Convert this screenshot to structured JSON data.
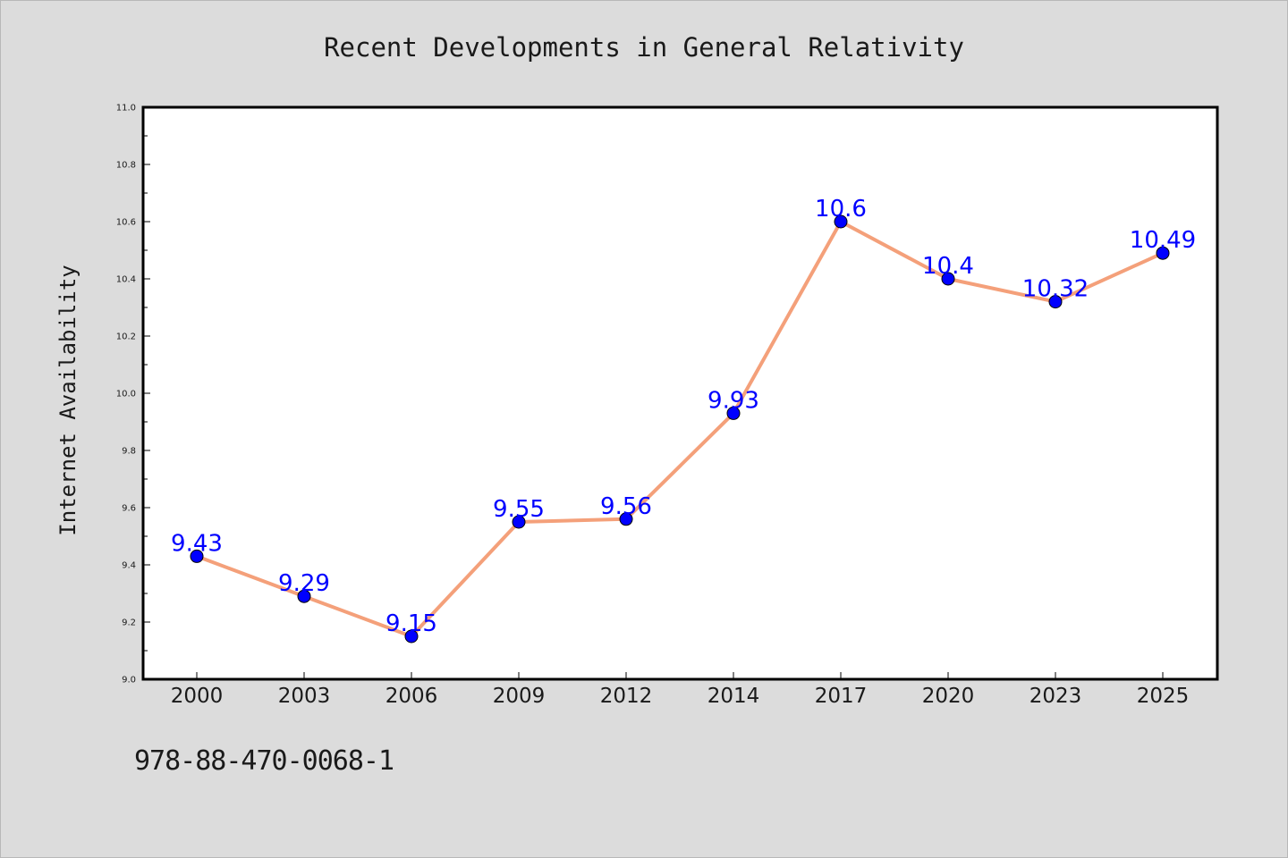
{
  "chart_data": {
    "type": "line",
    "title": "Recent Developments in General Relativity",
    "xlabel": "",
    "ylabel": "Internet Availability",
    "categories": [
      "2000",
      "2003",
      "2006",
      "2009",
      "2012",
      "2014",
      "2017",
      "2020",
      "2023",
      "2025"
    ],
    "series": [
      {
        "values": [
          9.43,
          9.29,
          9.15,
          9.55,
          9.56,
          9.93,
          10.6,
          10.4,
          10.32,
          10.49
        ],
        "labels": [
          "9.43",
          "9.29",
          "9.15",
          "9.55",
          "9.56",
          "9.93",
          "10.6",
          "10.4",
          "10.32",
          "10.49"
        ],
        "line_color": "#f4a07a",
        "marker_color": "#0000ff"
      }
    ],
    "ylim": [
      9.0,
      11.0
    ],
    "yticks": [
      "9.0",
      "9.2",
      "9.4",
      "9.6",
      "9.8",
      "10.0",
      "10.2",
      "10.4",
      "10.6",
      "10.8",
      "11.0"
    ],
    "grid": false,
    "legend": "none"
  },
  "footer": {
    "isbn": "978-88-470-0068-1"
  }
}
